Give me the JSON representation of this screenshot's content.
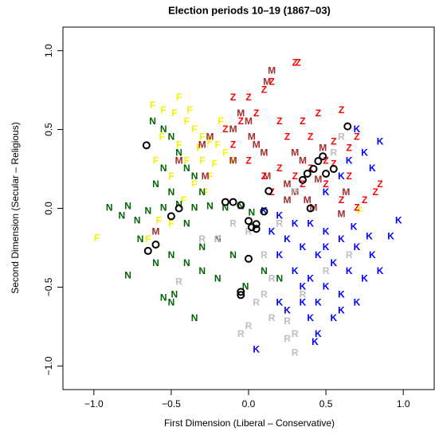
{
  "chart_data": {
    "type": "scatter",
    "title": "Election periods 10–19 (1867–03)",
    "x_label": "First Dimension (Liberal – Conservative)",
    "y_label": "Second Dimension (Secular – Religious)",
    "xlim": [
      -1.2,
      1.2
    ],
    "ylim": [
      -1.15,
      1.15
    ],
    "xticks": [
      {
        "value": -1,
        "label": "−1.0"
      },
      {
        "value": -0.5,
        "label": "−0.5"
      },
      {
        "value": 0,
        "label": "0.0"
      },
      {
        "value": 0.5,
        "label": "0.5"
      },
      {
        "value": 1,
        "label": "1.0"
      }
    ],
    "yticks": [
      {
        "value": -1,
        "label": "−1.0"
      },
      {
        "value": -0.5,
        "label": "−0.5"
      },
      {
        "value": 0,
        "label": "0.0"
      },
      {
        "value": 0.5,
        "label": "0.5"
      },
      {
        "value": 1,
        "label": "1.0"
      }
    ],
    "series": [
      {
        "marker": "F",
        "color": "#f2f200",
        "x": [
          -0.62,
          -0.55,
          -0.48,
          -0.45,
          -0.4,
          -0.35,
          -0.3,
          -0.25,
          -0.2,
          -0.15,
          -0.45,
          -0.4,
          -0.3,
          -0.22,
          -0.5,
          -0.35,
          -0.28,
          -0.42,
          -0.56,
          -0.6,
          -0.5,
          -0.65,
          -0.98,
          -0.58,
          -0.25,
          -0.18,
          -0.1,
          0.72,
          -0.38,
          -0.32
        ],
        "y": [
          0.65,
          0.62,
          0.6,
          0.7,
          0.55,
          0.5,
          0.45,
          0.42,
          0.4,
          0.35,
          0.4,
          0.3,
          0.3,
          0.28,
          0.2,
          0.15,
          0.1,
          0.05,
          0.45,
          0.3,
          -0.1,
          -0.2,
          -0.19,
          -0.08,
          0.2,
          0.55,
          0.3,
          -0.02,
          0.62,
          0.38
        ]
      },
      {
        "marker": "N",
        "color": "#006400",
        "x": [
          -0.62,
          -0.55,
          -0.5,
          -0.45,
          -0.4,
          -0.55,
          -0.6,
          -0.9,
          -0.82,
          -0.78,
          -0.72,
          -0.65,
          -0.55,
          -0.45,
          -0.35,
          -0.25,
          -0.15,
          -0.05,
          0.02,
          -0.7,
          -0.6,
          -0.5,
          -0.4,
          -0.3,
          -0.2,
          -0.1,
          -0.02,
          -0.55,
          -0.5,
          -0.35,
          -0.48,
          -0.78,
          -0.3,
          -0.2,
          0.1,
          0.2,
          -0.35,
          -0.5,
          -0.3,
          -0.4
        ],
        "y": [
          0.55,
          0.5,
          0.45,
          0.35,
          0.25,
          0.25,
          0.15,
          0,
          -0.05,
          0.01,
          -0.08,
          -0.02,
          0,
          0.02,
          0,
          0.01,
          0,
          0.01,
          -0.03,
          -0.2,
          -0.35,
          -0.3,
          -0.35,
          -0.4,
          -0.45,
          -0.3,
          -0.5,
          -0.57,
          -0.6,
          -0.7,
          -0.55,
          -0.43,
          -0.25,
          -0.2,
          -0.4,
          -0.45,
          0.2,
          0.1,
          0.1,
          -0.1
        ]
      },
      {
        "marker": "M",
        "color": "#a52a2a",
        "x": [
          0.15,
          0.12,
          -0.05,
          0,
          -0.1,
          -0.25,
          -0.3,
          -0.45,
          -0.28,
          -0.1,
          0.05,
          0.1,
          0.3,
          0.35,
          0.48,
          0.25,
          0.3,
          0.38,
          0.42,
          0.6,
          0.63,
          0.12,
          -0.6,
          0.02,
          0.45,
          0.25
        ],
        "y": [
          0.87,
          0.8,
          0.6,
          0.55,
          0.5,
          0.45,
          0.4,
          0.3,
          0.2,
          0.3,
          0.4,
          0.35,
          0.35,
          0.3,
          0.38,
          0.15,
          0.1,
          0.05,
          0,
          -0.04,
          0.1,
          0.2,
          -0.15,
          0.45,
          0.18,
          0.05
        ]
      },
      {
        "marker": "Z",
        "color": "#ff0000",
        "x": [
          0.3,
          0.32,
          0.15,
          0.1,
          0,
          -0.1,
          0.05,
          -0.05,
          -0.15,
          0.2,
          0.35,
          0.25,
          0.45,
          0.6,
          0.7,
          0.65,
          0.55,
          0.5,
          0.4,
          0.3,
          0.2,
          0.1,
          0,
          0.15,
          0.35,
          0.5,
          0.65,
          0.75,
          0.82,
          0.85,
          0.7,
          0.55,
          0.4,
          -0.1,
          0.6
        ],
        "y": [
          0.92,
          0.92,
          0.8,
          0.75,
          0.7,
          0.7,
          0.6,
          0.55,
          0.5,
          0.55,
          0.55,
          0.45,
          0.6,
          0.62,
          0.45,
          0.38,
          0.42,
          0.3,
          0.25,
          0.2,
          0.25,
          0.2,
          0.3,
          0.1,
          0.15,
          0.15,
          0.2,
          0.05,
          0.1,
          0.15,
          0,
          0.28,
          0.45,
          0.4,
          0.05
        ]
      },
      {
        "marker": "R",
        "color": "#bebebe",
        "x": [
          0.6,
          0.55,
          0.3,
          0.2,
          -0.2,
          -0.3,
          -0.1,
          0,
          0.1,
          0.15,
          0.1,
          0.05,
          0.15,
          0.25,
          0.3,
          0,
          -0.05,
          0.3,
          0.25,
          -0.45,
          0.5,
          0.35,
          0.65
        ],
        "y": [
          0.45,
          0.35,
          0.1,
          -0.1,
          -0.2,
          -0.2,
          -0.1,
          -0.15,
          -0.3,
          -0.45,
          -0.55,
          -0.6,
          -0.7,
          -0.72,
          -0.8,
          -0.75,
          -0.8,
          -0.92,
          -0.83,
          -0.47,
          -0.4,
          -0.55,
          -0.3
        ]
      },
      {
        "marker": "K",
        "color": "#0000ff",
        "x": [
          0.7,
          0.85,
          0.75,
          0.65,
          0.5,
          0.6,
          0.8,
          0.97,
          0.92,
          0.78,
          0.7,
          0.6,
          0.5,
          0.4,
          0.3,
          0.2,
          0.1,
          0.25,
          0.35,
          0.45,
          0.55,
          0.65,
          0.75,
          0.85,
          0.2,
          0.3,
          0.4,
          0.5,
          0.6,
          0.7,
          0.45,
          0.35,
          0.25,
          0.4,
          0.55,
          0.6,
          0.45,
          0.43,
          0.05,
          0.8,
          0.15,
          0.68,
          0.35,
          0.5,
          0.2
        ],
        "y": [
          0.5,
          0.42,
          0.35,
          0.3,
          0.1,
          0.2,
          0.25,
          -0.08,
          -0.18,
          -0.18,
          -0.25,
          -0.2,
          -0.15,
          -0.1,
          -0.1,
          -0.05,
          -0.02,
          -0.2,
          -0.25,
          -0.3,
          -0.35,
          -0.4,
          -0.45,
          -0.4,
          -0.3,
          -0.4,
          -0.45,
          -0.5,
          -0.55,
          -0.6,
          -0.6,
          -0.6,
          -0.65,
          -0.7,
          -0.7,
          -0.65,
          -0.8,
          -0.85,
          -0.9,
          -0.3,
          -0.15,
          -0.12,
          -0.5,
          -0.25,
          -0.6
        ]
      },
      {
        "symbol": "circle",
        "color": "#000000",
        "x": [
          -0.66,
          -0.65,
          -0.6,
          -0.5,
          -0.45,
          -0.15,
          -0.1,
          -0.05,
          0,
          0.02,
          0.05,
          0.1,
          0.13,
          0.35,
          0.38,
          0.42,
          0.45,
          0.48,
          0.5,
          0.55,
          0.64,
          0.4,
          -0.05,
          -0.05,
          0,
          0.05
        ],
        "y": [
          0.4,
          -0.27,
          -0.23,
          -0.05,
          0,
          0.04,
          0.04,
          0.02,
          -0.08,
          -0.12,
          -0.1,
          -0.02,
          0.11,
          0.18,
          0.22,
          0.25,
          0.3,
          0.33,
          0.22,
          0.25,
          0.52,
          0,
          -0.53,
          -0.55,
          -0.32,
          -0.13
        ]
      }
    ]
  }
}
